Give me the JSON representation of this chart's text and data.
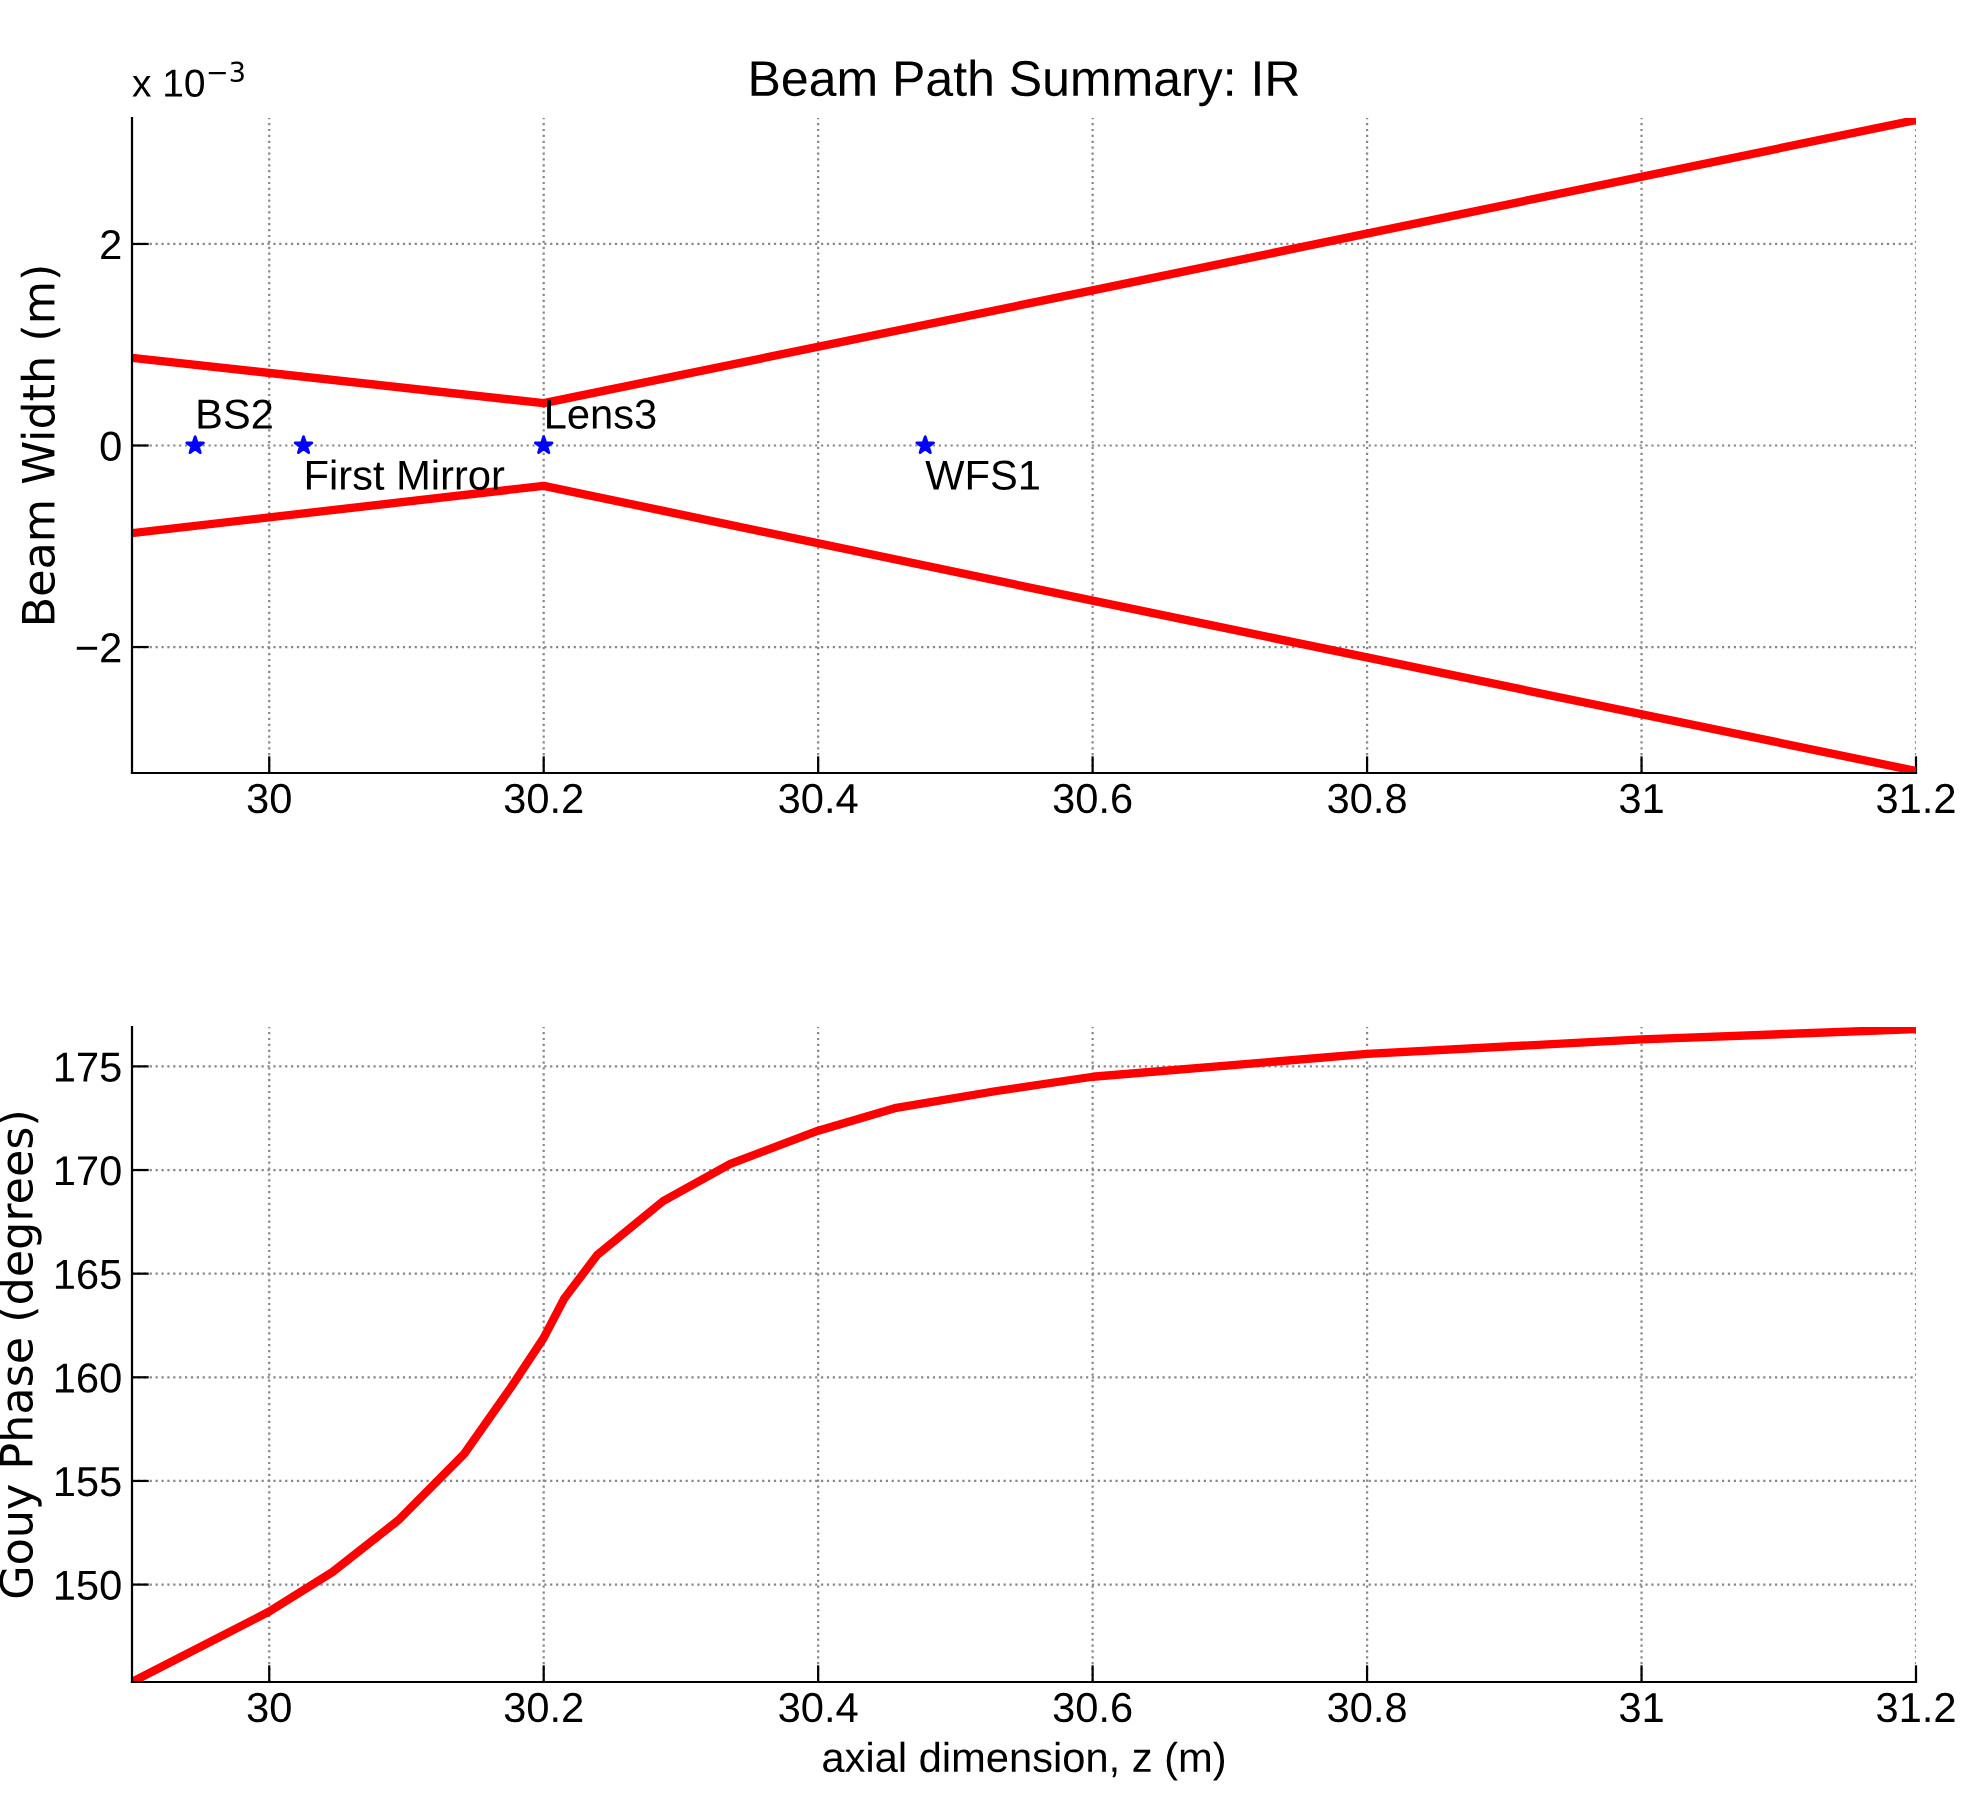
{
  "chart_data": [
    {
      "type": "line",
      "title": "Beam Path Summary: IR",
      "ylabel": "Beam Width (m)",
      "x": [
        29.9,
        30.2,
        30.6,
        31.2
      ],
      "series": [
        {
          "color": "#ff0000",
          "values": [
            0.87,
            0.42,
            1.54,
            3.23
          ]
        },
        {
          "color": "#ff0000",
          "values": [
            -0.87,
            -0.4,
            -1.54,
            -3.23
          ]
        },
        {
          "type": "scatter",
          "marker": "star",
          "color": "#0000ff",
          "x": [
            29.946,
            30.025,
            30.2,
            30.478
          ],
          "values": [
            0,
            0,
            0,
            0
          ]
        }
      ],
      "annotations": [
        "x 10$^{−3}$",
        {
          "text": "BS2",
          "x": 29.946,
          "y": 0
        },
        {
          "text": "First Mirror",
          "x": 30.025,
          "y": 0
        },
        {
          "text": "Lens3",
          "x": 30.2,
          "y": 0
        },
        {
          "text": "WFS1",
          "x": 30.478,
          "y": 0
        }
      ],
      "xlim": [
        29.9,
        31.2
      ],
      "xticks": [
        30,
        30.2,
        30.4,
        30.6,
        30.8,
        31,
        31.2
      ],
      "ylim": [
        -3.25,
        3.25
      ],
      "yticks": [
        {
          "value": -2,
          "label": "−2"
        },
        0,
        2
      ],
      "grid": true,
      "line_style": "solid",
      "marker": "none",
      "legend": false
    },
    {
      "type": "line",
      "ylabel": "Gouy Phase (degrees)",
      "xlabel": "axial dimension, z (m)",
      "x": [
        29.9,
        30.0,
        30.046,
        30.094,
        30.142,
        30.176,
        30.2,
        30.215,
        30.239,
        30.287,
        30.336,
        30.4,
        30.457,
        30.529,
        30.6,
        30.8,
        31.0,
        31.2
      ],
      "series": [
        {
          "color": "#ff0000",
          "values": [
            145.3,
            148.7,
            150.6,
            153.1,
            156.3,
            159.5,
            161.9,
            163.8,
            165.9,
            168.5,
            170.3,
            171.9,
            173.0,
            173.8,
            174.5,
            175.6,
            176.3,
            176.8
          ]
        }
      ],
      "xlim": [
        29.9,
        31.2
      ],
      "xticks": [
        30,
        30.2,
        30.4,
        30.6,
        30.8,
        31,
        31.2
      ],
      "ylim": [
        145.3,
        176.9
      ],
      "yticks": [
        150,
        155,
        160,
        165,
        170,
        175
      ],
      "grid": true,
      "line_style": "solid",
      "marker": "none",
      "legend": false
    }
  ]
}
